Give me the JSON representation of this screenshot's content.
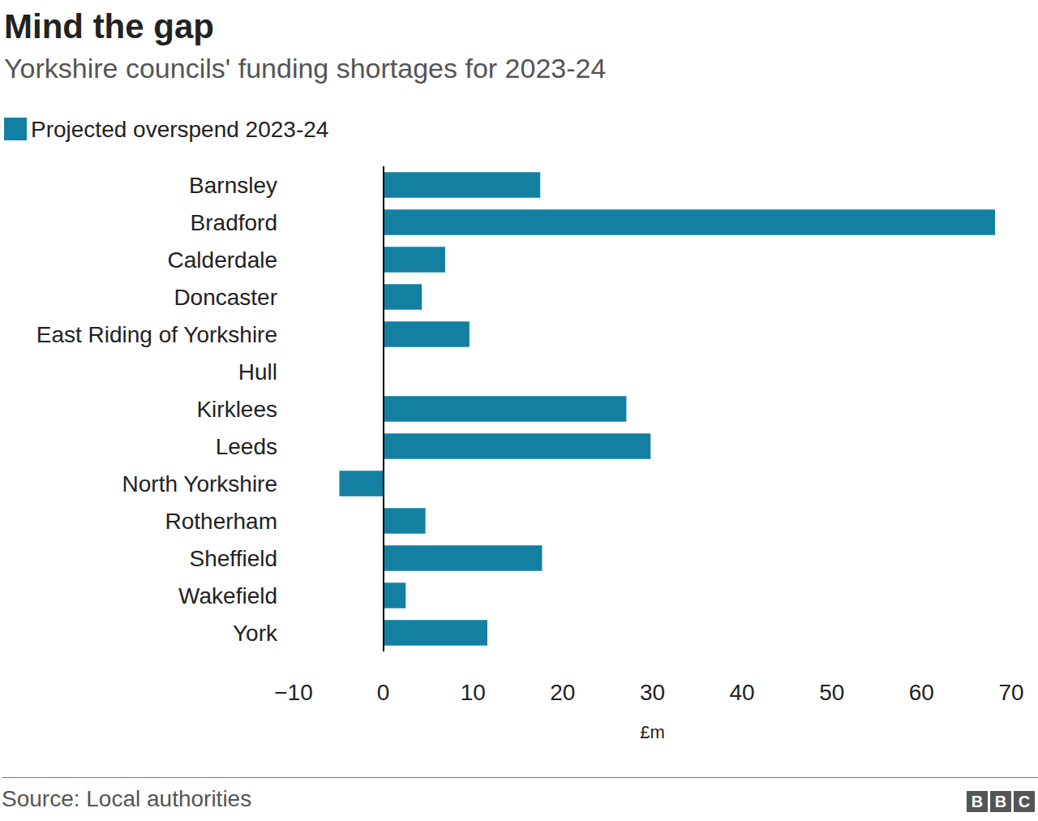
{
  "chart_data": {
    "type": "bar",
    "orientation": "horizontal",
    "title": "Mind the gap",
    "subtitle": "Yorkshire councils' funding shortages for 2023-24",
    "series": [
      {
        "name": "Projected overspend 2023-24",
        "color": "#1380a1",
        "values": [
          17.5,
          68.2,
          6.9,
          4.3,
          9.6,
          0,
          27.1,
          29.8,
          -4.9,
          4.7,
          17.7,
          2.5,
          11.6
        ]
      }
    ],
    "categories": [
      "Barnsley",
      "Bradford",
      "Calderdale",
      "Doncaster",
      "East Riding of Yorkshire",
      "Hull",
      "Kirklees",
      "Leeds",
      "North Yorkshire",
      "Rotherham",
      "Sheffield",
      "Wakefield",
      "York"
    ],
    "xlabel": "£m",
    "xlim": [
      -10,
      70
    ],
    "xticks": [
      {
        "value": -10,
        "label": "−10"
      },
      0,
      10,
      20,
      30,
      40,
      50,
      60,
      70
    ],
    "grid": false,
    "legend": "top-left",
    "source": "Source: Local authorities",
    "logo": "BBC"
  }
}
